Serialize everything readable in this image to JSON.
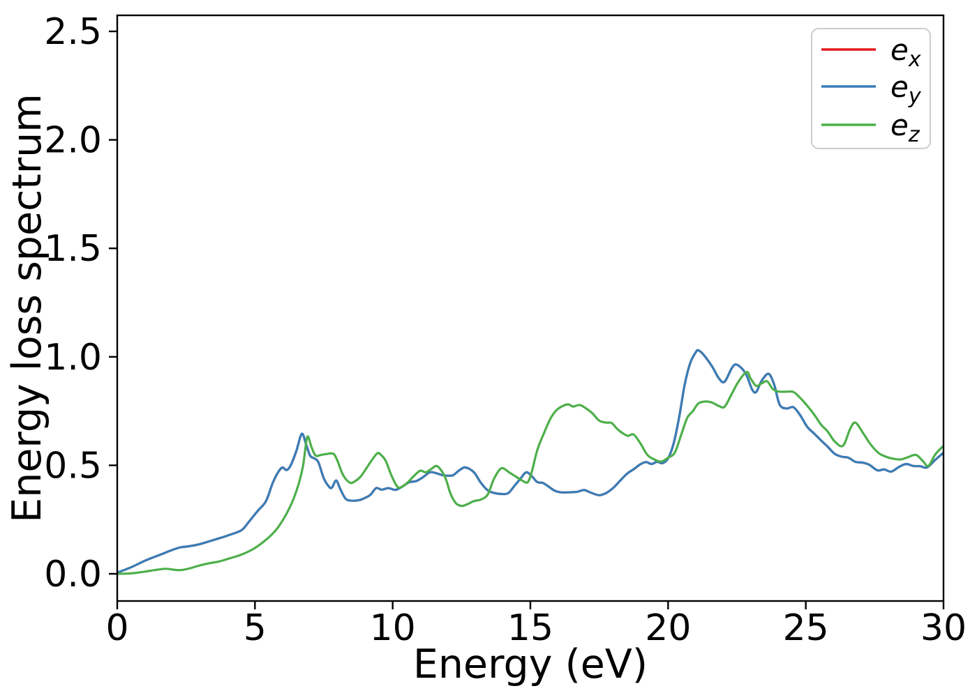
{
  "chart_data": {
    "type": "line",
    "title": "",
    "xlabel": "Energy (eV)",
    "ylabel": "Energy loss spectrum",
    "xlim": [
      0,
      30
    ],
    "ylim": [
      -0.125,
      2.575
    ],
    "x_ticks": [
      0,
      5,
      10,
      15,
      20,
      25,
      30
    ],
    "y_ticks": [
      {
        "label": "0.0",
        "value": 0.0
      },
      {
        "label": "0.5",
        "value": 0.5
      },
      {
        "label": "1.0",
        "value": 1.0
      },
      {
        "label": "1.5",
        "value": 1.5
      },
      {
        "label": "2.0",
        "value": 2.0
      },
      {
        "label": "2.5",
        "value": 2.5
      }
    ],
    "grid": false,
    "legend": {
      "position": "upper right",
      "entries": [
        {
          "base": "e",
          "sub": "x",
          "color": "#e41a1c"
        },
        {
          "base": "e",
          "sub": "y",
          "color": "#377eb8"
        },
        {
          "base": "e",
          "sub": "z",
          "color": "#4daf4a"
        }
      ]
    },
    "series": [
      {
        "name": "e_x",
        "color": "#e41a1c",
        "points": "same_as_e_y",
        "note": "red curve coincides with e_y and is hidden beneath it"
      },
      {
        "name": "e_y",
        "color": "#377eb8",
        "points": [
          [
            0,
            0.005
          ],
          [
            0.5,
            0.03
          ],
          [
            1,
            0.06
          ],
          [
            1.5,
            0.085
          ],
          [
            2,
            0.11
          ],
          [
            2.3,
            0.122
          ],
          [
            2.6,
            0.127
          ],
          [
            3,
            0.137
          ],
          [
            3.5,
            0.156
          ],
          [
            4,
            0.176
          ],
          [
            4.5,
            0.2
          ],
          [
            4.75,
            0.235
          ],
          [
            5.1,
            0.29
          ],
          [
            5.4,
            0.335
          ],
          [
            5.65,
            0.42
          ],
          [
            5.85,
            0.47
          ],
          [
            6,
            0.49
          ],
          [
            6.15,
            0.478
          ],
          [
            6.3,
            0.5
          ],
          [
            6.5,
            0.565
          ],
          [
            6.7,
            0.645
          ],
          [
            6.85,
            0.6
          ],
          [
            7,
            0.545
          ],
          [
            7.15,
            0.532
          ],
          [
            7.3,
            0.515
          ],
          [
            7.5,
            0.44
          ],
          [
            7.7,
            0.4
          ],
          [
            7.8,
            0.398
          ],
          [
            7.95,
            0.43
          ],
          [
            8.1,
            0.39
          ],
          [
            8.3,
            0.345
          ],
          [
            8.55,
            0.337
          ],
          [
            8.8,
            0.34
          ],
          [
            9,
            0.35
          ],
          [
            9.2,
            0.365
          ],
          [
            9.4,
            0.395
          ],
          [
            9.6,
            0.388
          ],
          [
            9.85,
            0.395
          ],
          [
            10.1,
            0.387
          ],
          [
            10.35,
            0.402
          ],
          [
            10.6,
            0.422
          ],
          [
            10.85,
            0.427
          ],
          [
            11.1,
            0.445
          ],
          [
            11.35,
            0.468
          ],
          [
            11.55,
            0.465
          ],
          [
            11.8,
            0.455
          ],
          [
            12,
            0.452
          ],
          [
            12.2,
            0.455
          ],
          [
            12.45,
            0.48
          ],
          [
            12.65,
            0.49
          ],
          [
            12.95,
            0.468
          ],
          [
            13.2,
            0.42
          ],
          [
            13.45,
            0.385
          ],
          [
            13.7,
            0.372
          ],
          [
            13.95,
            0.368
          ],
          [
            14.2,
            0.372
          ],
          [
            14.45,
            0.41
          ],
          [
            14.65,
            0.44
          ],
          [
            14.85,
            0.468
          ],
          [
            15.05,
            0.45
          ],
          [
            15.25,
            0.423
          ],
          [
            15.45,
            0.419
          ],
          [
            15.65,
            0.403
          ],
          [
            15.9,
            0.382
          ],
          [
            16.15,
            0.375
          ],
          [
            16.45,
            0.376
          ],
          [
            16.7,
            0.378
          ],
          [
            16.95,
            0.386
          ],
          [
            17.2,
            0.374
          ],
          [
            17.5,
            0.362
          ],
          [
            17.75,
            0.372
          ],
          [
            18,
            0.395
          ],
          [
            18.25,
            0.428
          ],
          [
            18.5,
            0.46
          ],
          [
            18.75,
            0.482
          ],
          [
            19,
            0.505
          ],
          [
            19.2,
            0.515
          ],
          [
            19.4,
            0.506
          ],
          [
            19.6,
            0.516
          ],
          [
            19.8,
            0.51
          ],
          [
            20,
            0.532
          ],
          [
            20.2,
            0.6
          ],
          [
            20.4,
            0.72
          ],
          [
            20.6,
            0.87
          ],
          [
            20.8,
            0.97
          ],
          [
            21,
            1.02
          ],
          [
            21.1,
            1.03
          ],
          [
            21.3,
            1.008
          ],
          [
            21.6,
            0.955
          ],
          [
            21.85,
            0.9
          ],
          [
            22.05,
            0.885
          ],
          [
            22.3,
            0.945
          ],
          [
            22.45,
            0.965
          ],
          [
            22.65,
            0.95
          ],
          [
            22.85,
            0.915
          ],
          [
            23.05,
            0.85
          ],
          [
            23.2,
            0.838
          ],
          [
            23.4,
            0.89
          ],
          [
            23.65,
            0.922
          ],
          [
            23.85,
            0.873
          ],
          [
            24.05,
            0.78
          ],
          [
            24.3,
            0.762
          ],
          [
            24.55,
            0.768
          ],
          [
            24.8,
            0.73
          ],
          [
            25.05,
            0.678
          ],
          [
            25.3,
            0.647
          ],
          [
            25.55,
            0.615
          ],
          [
            25.8,
            0.585
          ],
          [
            26.05,
            0.553
          ],
          [
            26.3,
            0.54
          ],
          [
            26.55,
            0.535
          ],
          [
            26.8,
            0.516
          ],
          [
            27.05,
            0.513
          ],
          [
            27.3,
            0.503
          ],
          [
            27.6,
            0.477
          ],
          [
            27.85,
            0.481
          ],
          [
            28.1,
            0.471
          ],
          [
            28.4,
            0.494
          ],
          [
            28.65,
            0.506
          ],
          [
            28.9,
            0.497
          ],
          [
            29.15,
            0.496
          ],
          [
            29.4,
            0.49
          ],
          [
            29.7,
            0.525
          ],
          [
            30,
            0.558
          ]
        ]
      },
      {
        "name": "e_z",
        "color": "#4daf4a",
        "points": [
          [
            0,
            0
          ],
          [
            0.5,
            0.002
          ],
          [
            1,
            0.01
          ],
          [
            1.35,
            0.017
          ],
          [
            1.75,
            0.023
          ],
          [
            2.05,
            0.019
          ],
          [
            2.3,
            0.017
          ],
          [
            2.6,
            0.024
          ],
          [
            3,
            0.039
          ],
          [
            3.35,
            0.049
          ],
          [
            3.7,
            0.057
          ],
          [
            4.1,
            0.072
          ],
          [
            4.5,
            0.088
          ],
          [
            4.85,
            0.108
          ],
          [
            5.15,
            0.132
          ],
          [
            5.45,
            0.162
          ],
          [
            5.75,
            0.2
          ],
          [
            6,
            0.245
          ],
          [
            6.2,
            0.29
          ],
          [
            6.4,
            0.345
          ],
          [
            6.6,
            0.42
          ],
          [
            6.75,
            0.5
          ],
          [
            6.9,
            0.63
          ],
          [
            7.05,
            0.585
          ],
          [
            7.2,
            0.545
          ],
          [
            7.4,
            0.548
          ],
          [
            7.6,
            0.552
          ],
          [
            7.85,
            0.553
          ],
          [
            8,
            0.52
          ],
          [
            8.2,
            0.455
          ],
          [
            8.45,
            0.42
          ],
          [
            8.65,
            0.428
          ],
          [
            8.85,
            0.45
          ],
          [
            9.05,
            0.487
          ],
          [
            9.25,
            0.525
          ],
          [
            9.45,
            0.556
          ],
          [
            9.6,
            0.545
          ],
          [
            9.75,
            0.52
          ],
          [
            9.95,
            0.455
          ],
          [
            10.15,
            0.405
          ],
          [
            10.3,
            0.398
          ],
          [
            10.55,
            0.422
          ],
          [
            10.75,
            0.448
          ],
          [
            11,
            0.475
          ],
          [
            11.2,
            0.468
          ],
          [
            11.4,
            0.483
          ],
          [
            11.6,
            0.497
          ],
          [
            11.8,
            0.47
          ],
          [
            11.95,
            0.43
          ],
          [
            12.1,
            0.37
          ],
          [
            12.3,
            0.325
          ],
          [
            12.5,
            0.313
          ],
          [
            12.7,
            0.32
          ],
          [
            12.95,
            0.335
          ],
          [
            13.2,
            0.342
          ],
          [
            13.45,
            0.365
          ],
          [
            13.65,
            0.43
          ],
          [
            13.85,
            0.475
          ],
          [
            14,
            0.487
          ],
          [
            14.2,
            0.47
          ],
          [
            14.45,
            0.45
          ],
          [
            14.7,
            0.43
          ],
          [
            14.9,
            0.422
          ],
          [
            15.05,
            0.47
          ],
          [
            15.25,
            0.57
          ],
          [
            15.5,
            0.65
          ],
          [
            15.75,
            0.72
          ],
          [
            16,
            0.76
          ],
          [
            16.35,
            0.781
          ],
          [
            16.55,
            0.771
          ],
          [
            16.8,
            0.778
          ],
          [
            17.05,
            0.76
          ],
          [
            17.25,
            0.74
          ],
          [
            17.5,
            0.706
          ],
          [
            17.75,
            0.697
          ],
          [
            17.95,
            0.695
          ],
          [
            18.15,
            0.668
          ],
          [
            18.35,
            0.648
          ],
          [
            18.55,
            0.636
          ],
          [
            18.75,
            0.642
          ],
          [
            19,
            0.6
          ],
          [
            19.25,
            0.548
          ],
          [
            19.5,
            0.527
          ],
          [
            19.75,
            0.517
          ],
          [
            20,
            0.535
          ],
          [
            20.25,
            0.56
          ],
          [
            20.5,
            0.65
          ],
          [
            20.7,
            0.72
          ],
          [
            20.9,
            0.75
          ],
          [
            21.1,
            0.785
          ],
          [
            21.35,
            0.794
          ],
          [
            21.6,
            0.789
          ],
          [
            21.85,
            0.773
          ],
          [
            22.05,
            0.77
          ],
          [
            22.3,
            0.826
          ],
          [
            22.55,
            0.885
          ],
          [
            22.85,
            0.93
          ],
          [
            23,
            0.9
          ],
          [
            23.2,
            0.866
          ],
          [
            23.4,
            0.878
          ],
          [
            23.6,
            0.887
          ],
          [
            23.8,
            0.852
          ],
          [
            24,
            0.84
          ],
          [
            24.25,
            0.839
          ],
          [
            24.55,
            0.838
          ],
          [
            24.8,
            0.81
          ],
          [
            25.05,
            0.775
          ],
          [
            25.3,
            0.735
          ],
          [
            25.55,
            0.688
          ],
          [
            25.8,
            0.655
          ],
          [
            26.05,
            0.61
          ],
          [
            26.35,
            0.59
          ],
          [
            26.6,
            0.665
          ],
          [
            26.8,
            0.697
          ],
          [
            27.1,
            0.645
          ],
          [
            27.35,
            0.597
          ],
          [
            27.65,
            0.556
          ],
          [
            27.95,
            0.538
          ],
          [
            28.2,
            0.53
          ],
          [
            28.45,
            0.527
          ],
          [
            28.7,
            0.537
          ],
          [
            29,
            0.548
          ],
          [
            29.25,
            0.52
          ],
          [
            29.45,
            0.497
          ],
          [
            29.7,
            0.55
          ],
          [
            30,
            0.59
          ]
        ]
      }
    ]
  }
}
